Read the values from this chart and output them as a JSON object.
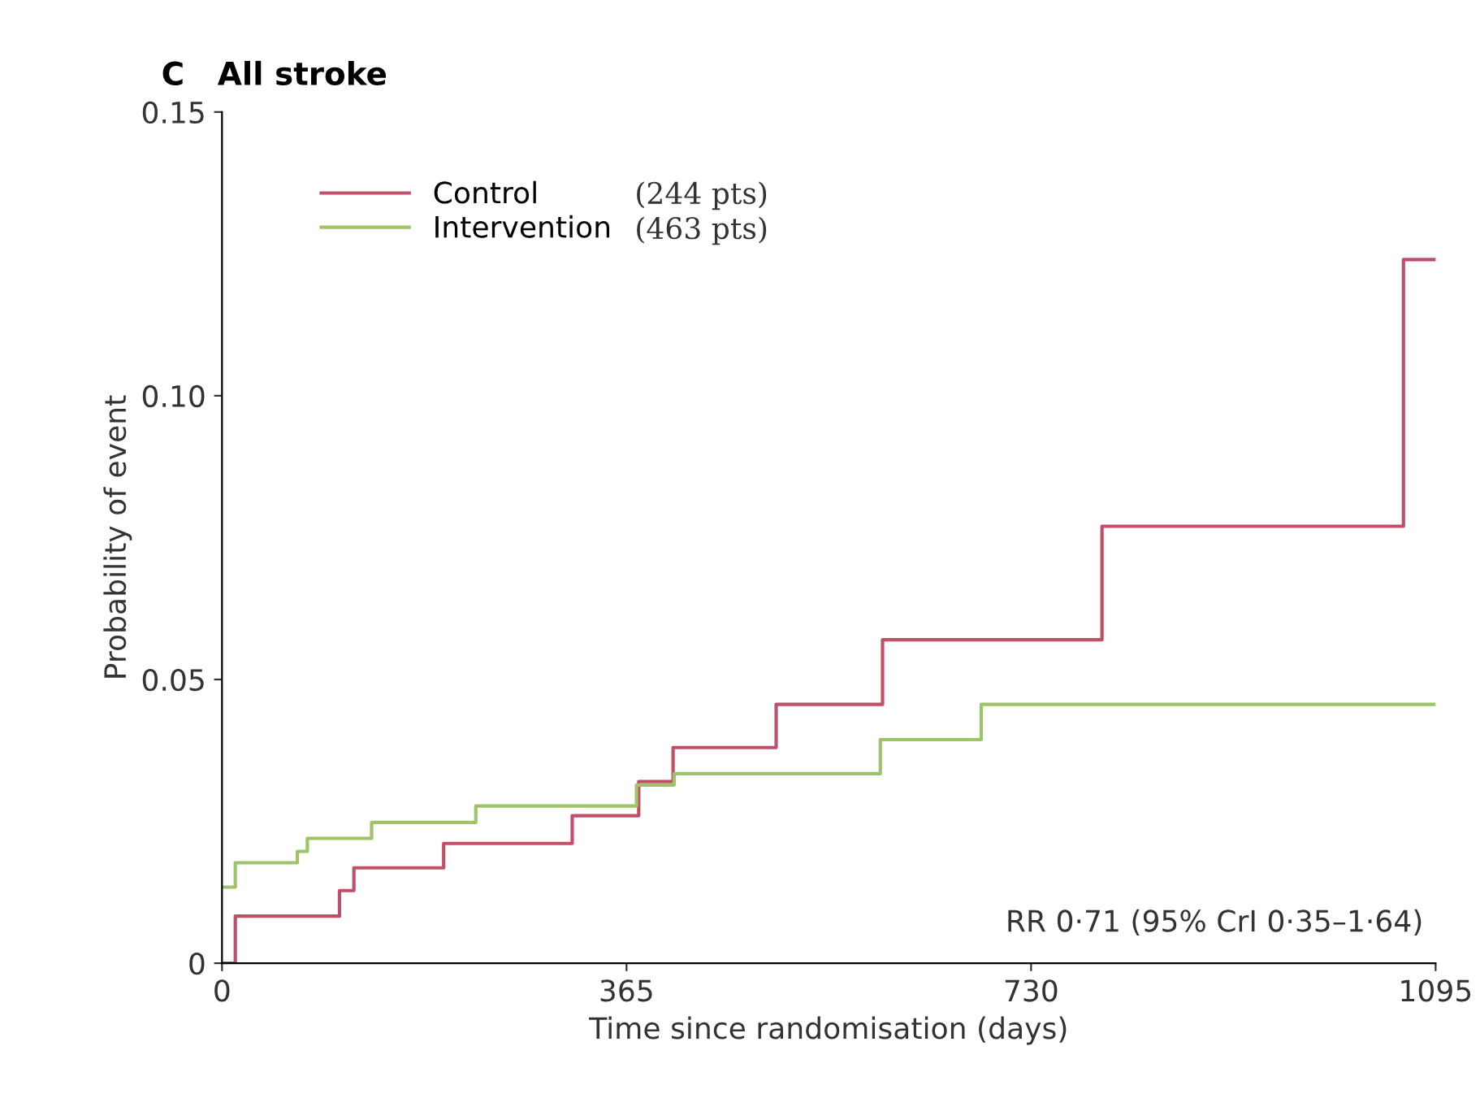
{
  "chart_data": {
    "type": "step",
    "title": "C   All stroke",
    "xlabel": "Time since randomisation (days)",
    "ylabel": "Probability of event",
    "xlim": [
      0,
      1095
    ],
    "xticks": [
      0,
      365,
      730,
      1095
    ],
    "ylim": [
      0,
      0.15
    ],
    "yticks": [
      0,
      0.05,
      {
        "value": 0.1,
        "label": "0.10"
      },
      0.15
    ],
    "grid": false,
    "legend": "top left",
    "line_style": "solid",
    "marker": "none",
    "series": [
      {
        "name": "Control",
        "color": "#c0506a",
        "x": [
          0,
          12,
          106,
          119,
          200,
          316,
          376,
          407,
          500,
          596,
          794,
          1066,
          1095
        ],
        "values": [
          0,
          0.0083,
          0.0128,
          0.0168,
          0.0211,
          0.026,
          0.032,
          0.038,
          0.0456,
          0.057,
          0.077,
          0.124,
          0.124
        ]
      },
      {
        "name": "Intervention",
        "color": "#9ec46a",
        "x": [
          0,
          12,
          68,
          77,
          135,
          229,
          374,
          408,
          594,
          685,
          1095
        ],
        "values": [
          0.0134,
          0.0177,
          0.0197,
          0.022,
          0.0248,
          0.0277,
          0.0314,
          0.0334,
          0.0394,
          0.0456,
          0.0456
        ]
      }
    ],
    "annotations": [
      "(244 pts)",
      "(463 pts)",
      "RR 0·71 (95% CrI 0·35–1·64)"
    ]
  }
}
